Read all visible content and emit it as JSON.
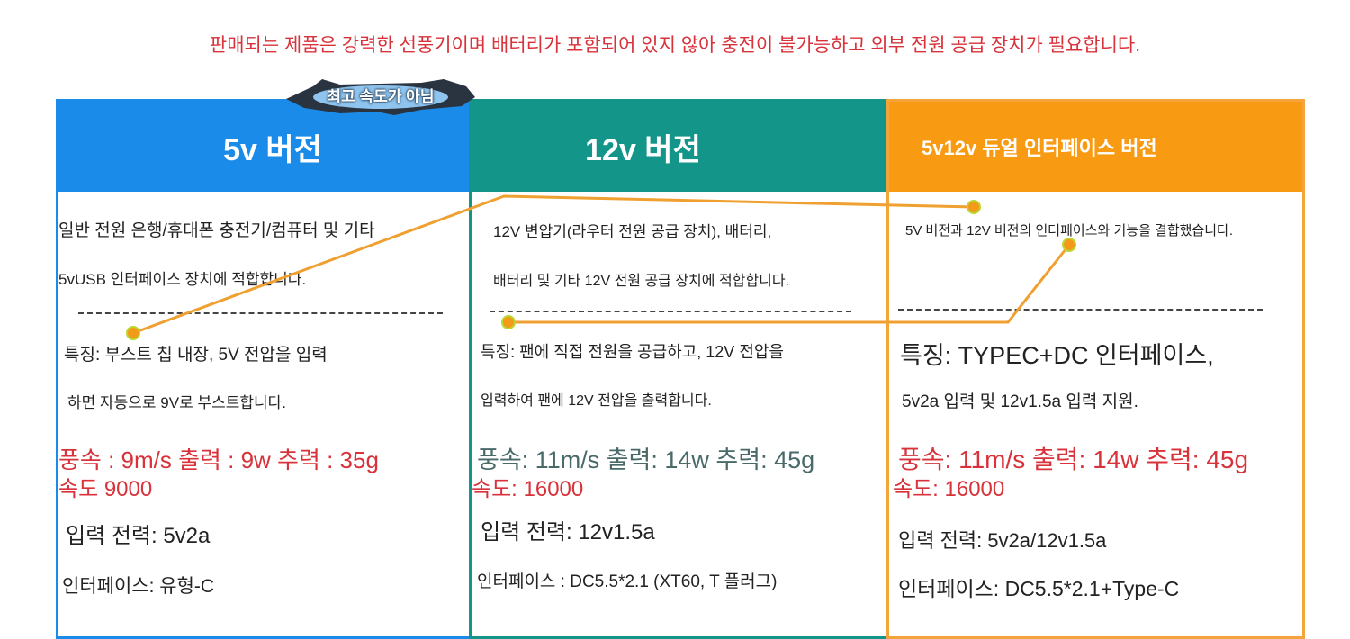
{
  "banner": "판매되는 제품은 강력한 선풍기이며 배터리가 포함되어 있지 않아 충전이 불가능하고 외부 전원 공급 장치가 필요합니다.",
  "badge": "최고 속도가 아님",
  "colors": {
    "blue": "#1a8be8",
    "teal": "#14958a",
    "orange": "#f89a12",
    "red": "#d8323a"
  },
  "columns": [
    {
      "title": "5v 버전",
      "desc": [
        "일반 전원 은행/휴대폰 충전기/컴퓨터 및 기타",
        "5vUSB 인터페이스 장치에 적합합니다."
      ],
      "feature": [
        "특징: 부스트 칩 내장, 5V 전압을 입력",
        "하면 자동으로 9V로 부스트합니다."
      ],
      "specs": "풍속 : 9m/s 출력 : 9w 추력 : 35g",
      "speed": "속도 9000",
      "power": "입력 전력: 5v2a",
      "interface": "인터페이스: 유형-C"
    },
    {
      "title": "12v 버전",
      "desc": [
        "12V 변압기(라우터 전원 공급 장치), 배터리,",
        "배터리 및 기타 12V 전원 공급 장치에 적합합니다."
      ],
      "feature": [
        "특징: 팬에 직접 전원을 공급하고, 12V 전압을",
        "입력하여 팬에 12V 전압을 출력합니다."
      ],
      "specs": "풍속: 11m/s 출력: 14w 추력: 45g",
      "speed": "속도: 16000",
      "power": "입력 전력: 12v1.5a",
      "interface": "인터페이스 : DC5.5*2.1 (XT60, T 플러그)"
    },
    {
      "title": "5v12v 듀얼 인터페이스 버전",
      "desc": [
        "5V 버전과 12V 버전의 인터페이스와 기능을 결합했습니다."
      ],
      "feature": [
        "특징: TYPEC+DC 인터페이스,",
        "5v2a 입력 및 12v1.5a 입력 지원."
      ],
      "specs": "풍속: 11m/s 출력: 14w 추력: 45g",
      "speed": "속도: 16000",
      "power": "입력 전력: 5v2a/12v1.5a",
      "interface": "인터페이스: DC5.5*2.1+Type-C"
    }
  ]
}
